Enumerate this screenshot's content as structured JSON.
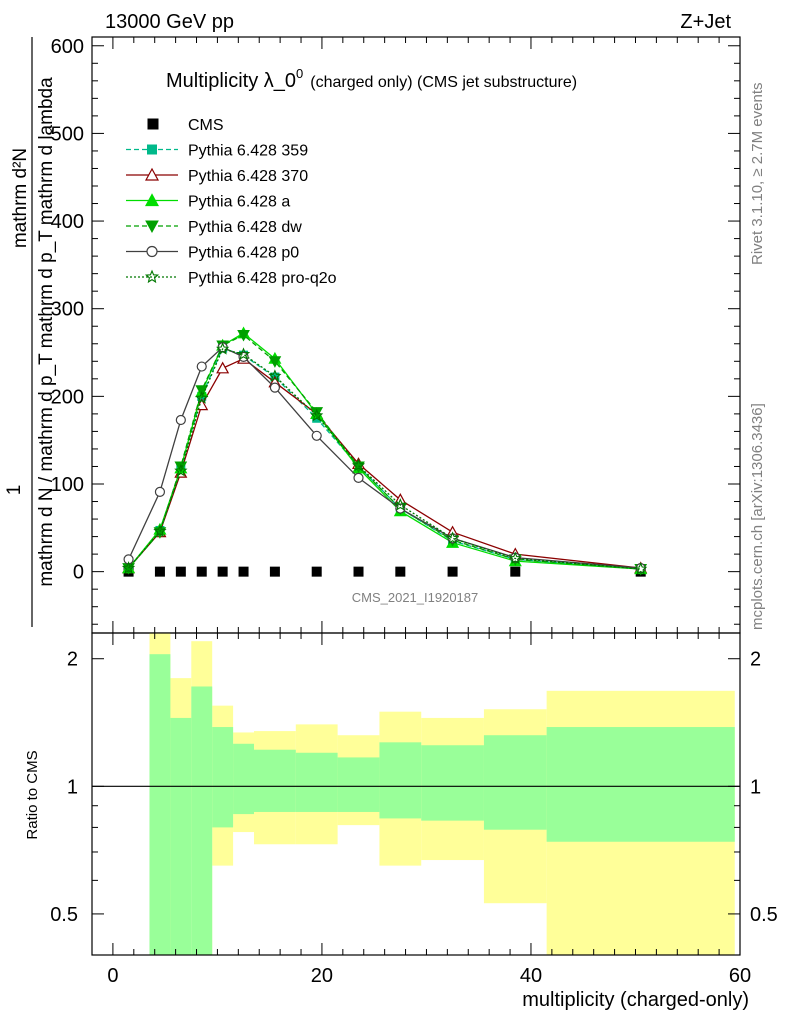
{
  "header": {
    "left": "13000 GeV pp",
    "right": "Z+Jet"
  },
  "side_labels": {
    "rivet": "Rivet 3.1.10, ≥ 2.7M events",
    "mcplots": "mcplots.cern.ch [arXiv:1306.3436]"
  },
  "watermark": "CMS_2021_I1920187",
  "chart_data": [
    {
      "type": "line",
      "title_main": "Multiplicity λ_0",
      "title_sup": "0",
      "title_rest": "(charged only) (CMS jet substructure)",
      "ylabel_numer": "mathrm d²N",
      "ylabel_denom": "mathrm d N / mathrm d p_T mathrm d p_T mathrm d lambda",
      "ylabel_one": "1",
      "xlim": [
        -2,
        60
      ],
      "ylim": [
        -70,
        610
      ],
      "y_ticks": [
        0,
        100,
        200,
        300,
        400,
        500,
        600
      ],
      "x": [
        1.5,
        4.5,
        6.5,
        8.5,
        10.5,
        12.5,
        15.5,
        19.5,
        23.5,
        27.5,
        32.5,
        38.5,
        50.5
      ],
      "series": [
        {
          "name": "CMS",
          "color": "#000000",
          "style": "data",
          "values": [
            0,
            0,
            0,
            0,
            0,
            0,
            0,
            0,
            0,
            0,
            0,
            0,
            0
          ]
        },
        {
          "name": "Pythia 6.428 359",
          "color": "#00b98a",
          "style": "dashed",
          "marker": "square",
          "values": [
            4,
            47,
            118,
            200,
            255,
            247,
            222,
            175,
            120,
            72,
            35,
            14,
            3
          ]
        },
        {
          "name": "Pythia 6.428 370",
          "color": "#8b0000",
          "style": "solid",
          "marker": "triangle-open",
          "values": [
            4,
            45,
            113,
            190,
            232,
            243,
            216,
            180,
            123,
            82,
            45,
            20,
            4
          ]
        },
        {
          "name": "Pythia 6.428 a",
          "color": "#00dd00",
          "style": "solid",
          "marker": "triangle",
          "values": [
            4,
            48,
            118,
            205,
            258,
            272,
            243,
            180,
            118,
            69,
            33,
            12,
            3
          ]
        },
        {
          "name": "Pythia 6.428 dw",
          "color": "#00a000",
          "style": "dashed",
          "marker": "triangle-down",
          "values": [
            4,
            45,
            120,
            207,
            258,
            270,
            240,
            182,
            120,
            72,
            36,
            14,
            3
          ]
        },
        {
          "name": "Pythia 6.428 p0",
          "color": "#404040",
          "style": "solid",
          "marker": "circle-open",
          "values": [
            14,
            91,
            173,
            234,
            256,
            245,
            210,
            155,
            107,
            72,
            38,
            16,
            4
          ]
        },
        {
          "name": "Pythia 6.428 pro-q2o",
          "color": "#007700",
          "style": "dotted",
          "marker": "star-open",
          "values": [
            4,
            46,
            115,
            198,
            254,
            248,
            223,
            178,
            121,
            76,
            38,
            15,
            3
          ]
        }
      ]
    },
    {
      "type": "area",
      "ylabel": "Ratio to CMS",
      "xlabel": "multiplicity (charged-only)",
      "xlim": [
        -2,
        60
      ],
      "ylim": [
        0.4,
        2.3
      ],
      "x_ticks": [
        0,
        20,
        40,
        60
      ],
      "y_ticks": [
        0.5,
        1,
        2
      ],
      "bin_edges": [
        3.5,
        5.5,
        7.5,
        9.5,
        11.5,
        13.5,
        17.5,
        21.5,
        25.5,
        29.5,
        35.5,
        41.5,
        59.5
      ],
      "stat_band": {
        "color": "#99ff99",
        "upper": [
          2.05,
          1.45,
          1.72,
          1.38,
          1.26,
          1.22,
          1.2,
          1.17,
          1.27,
          1.25,
          1.32,
          1.38
        ],
        "lower": [
          0.35,
          0.35,
          0.35,
          0.8,
          0.86,
          0.87,
          0.87,
          0.87,
          0.84,
          0.83,
          0.79,
          0.74
        ]
      },
      "syst_band": {
        "color": "#ffff99",
        "upper": [
          2.6,
          1.8,
          2.2,
          1.55,
          1.34,
          1.35,
          1.4,
          1.32,
          1.5,
          1.45,
          1.52,
          1.68
        ],
        "lower": [
          0.35,
          0.68,
          0.35,
          0.65,
          0.78,
          0.73,
          0.73,
          0.81,
          0.65,
          0.67,
          0.53,
          0.35
        ]
      }
    }
  ]
}
